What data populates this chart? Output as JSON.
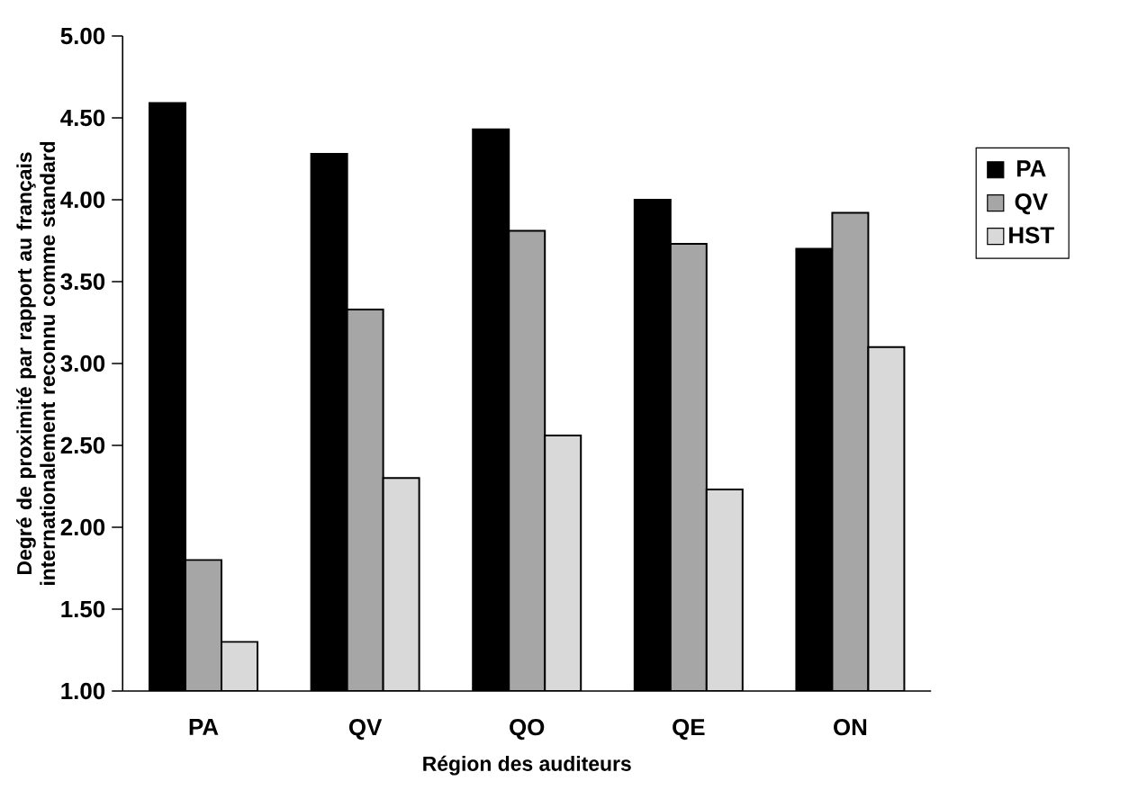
{
  "chart_data": {
    "type": "bar",
    "xlabel": "Région des auditeurs",
    "ylabel": "Degré de proximité par rapport au français internationalement reconnu comme standard",
    "categories": [
      "PA",
      "QV",
      "QO",
      "QE",
      "ON"
    ],
    "series": [
      {
        "name": "PA",
        "color": "#000000",
        "values": [
          4.59,
          4.28,
          4.43,
          4.0,
          3.7
        ]
      },
      {
        "name": "QV",
        "color": "#a6a6a6",
        "values": [
          1.8,
          3.33,
          3.81,
          3.73,
          3.92
        ]
      },
      {
        "name": "HST",
        "color": "#d9d9d9",
        "values": [
          1.3,
          2.3,
          2.56,
          2.23,
          3.1
        ]
      }
    ],
    "ylim": [
      1,
      5
    ],
    "yticks": [
      {
        "value": 1,
        "label": "1.00"
      },
      {
        "value": 1.5,
        "label": "1.50"
      },
      {
        "value": 2,
        "label": "2.00"
      },
      {
        "value": 2.5,
        "label": "2.50"
      },
      {
        "value": 3,
        "label": "3.00"
      },
      {
        "value": 3.5,
        "label": "3.50"
      },
      {
        "value": 4,
        "label": "4.00"
      },
      {
        "value": 4.5,
        "label": "4.50"
      },
      {
        "value": 5,
        "label": "5.00"
      }
    ],
    "grid": false,
    "legend": "right"
  }
}
